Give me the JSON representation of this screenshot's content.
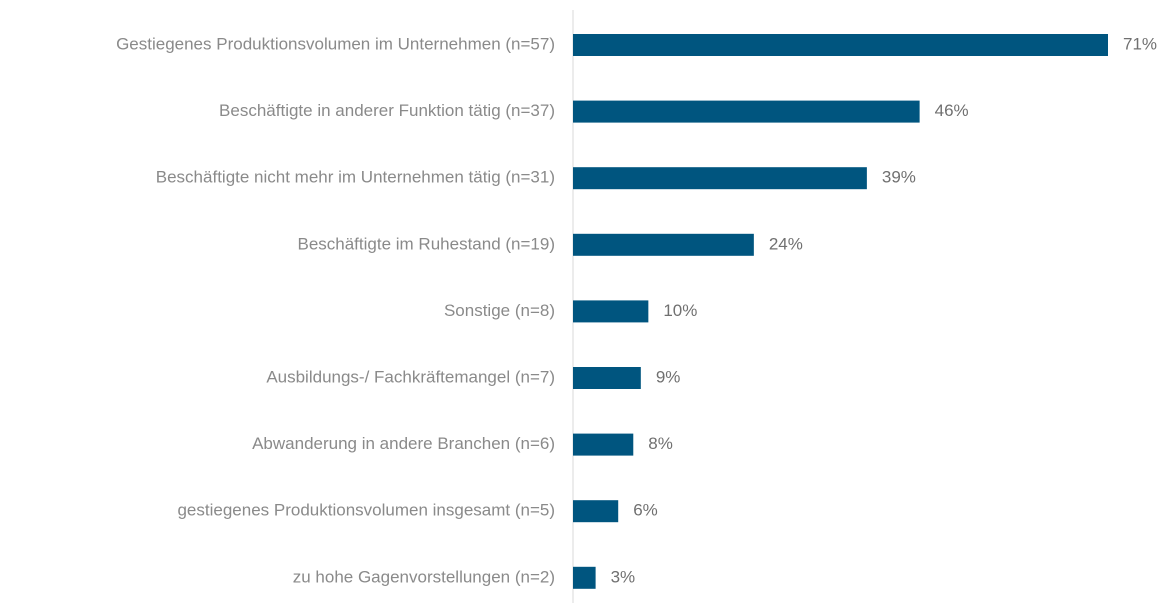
{
  "chart_data": {
    "type": "bar",
    "orientation": "horizontal",
    "categories": [
      "Gestiegenes Produktionsvolumen im Unternehmen (n=57)",
      "Beschäftigte in anderer Funktion tätig (n=37)",
      "Beschäftigte nicht mehr im Unternehmen tätig (n=31)",
      "Beschäftigte im Ruhestand (n=19)",
      "Sonstige (n=8)",
      "Ausbildungs-/ Fachkräftemangel (n=7)",
      "Abwanderung in andere Branchen (n=6)",
      "gestiegenes Produktionsvolumen insgesamt (n=5)",
      "zu hohe Gagenvorstellungen (n=2)"
    ],
    "values": [
      71,
      46,
      39,
      24,
      10,
      9,
      8,
      6,
      3
    ],
    "value_labels": [
      "71%",
      "46%",
      "39%",
      "24%",
      "10%",
      "9%",
      "8%",
      "6%",
      "3%"
    ],
    "color": "#00557f"
  }
}
